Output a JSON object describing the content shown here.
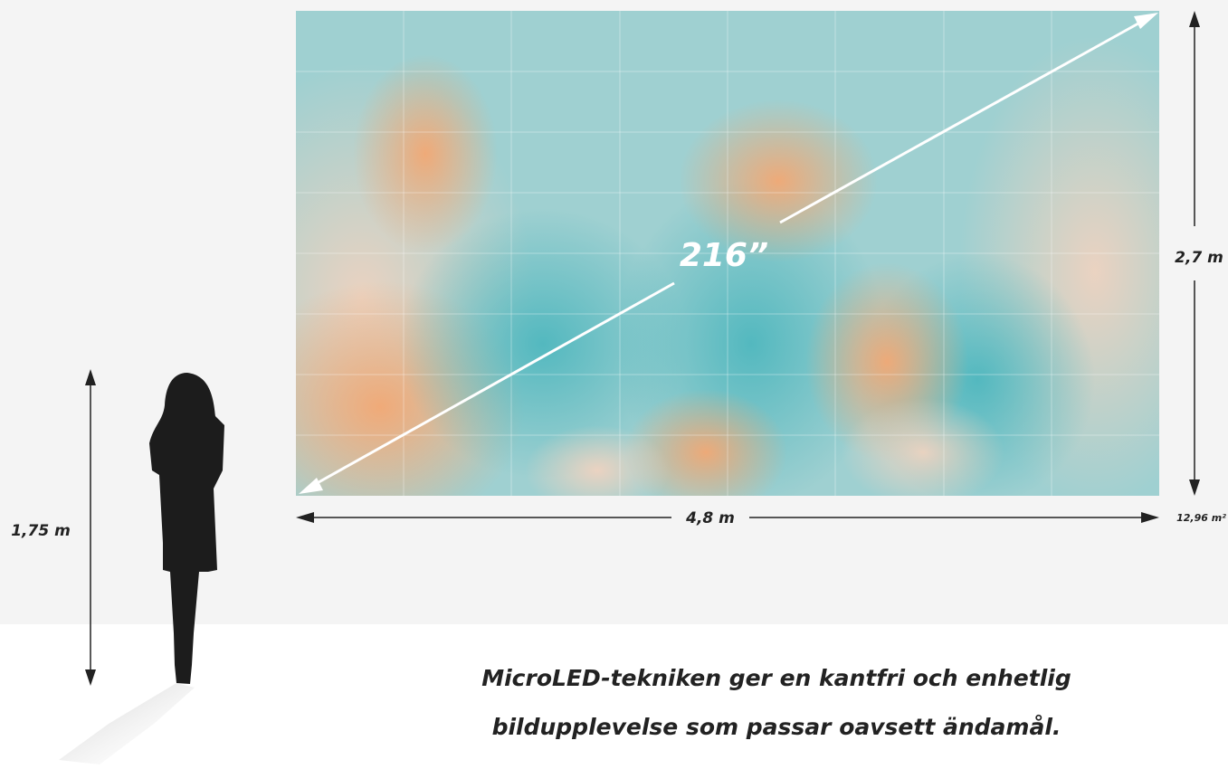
{
  "screen": {
    "diagonal": "216”"
  },
  "dimensions": {
    "height": "2,7 m",
    "width": "4,8 m",
    "area": "12,96 m²"
  },
  "person": {
    "height": "1,75 m"
  },
  "caption": {
    "lines": [
      "MicroLED-tekniken ger en kantfri och enhetlig",
      "bildupplevelse som passar oavsett ändamål."
    ]
  }
}
